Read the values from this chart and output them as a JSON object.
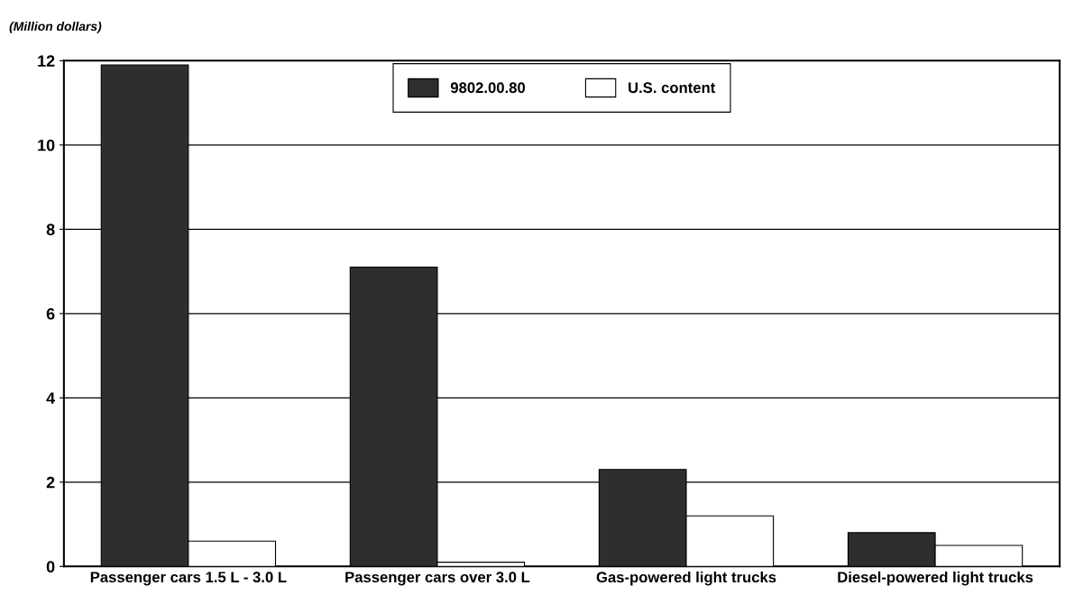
{
  "chart_data": {
    "type": "bar",
    "ylabel": "(Million dollars)",
    "categories": [
      "Passenger cars 1.5 L - 3.0 L",
      "Passenger cars over 3.0 L",
      "Gas-powered light trucks",
      "Diesel-powered light trucks"
    ],
    "series": [
      {
        "name": "9802.00.80",
        "color": "#2e2e2e",
        "values": [
          11.9,
          7.1,
          2.3,
          0.8
        ]
      },
      {
        "name": "U.S. content",
        "color": "#ffffff",
        "values": [
          0.6,
          0.1,
          1.2,
          0.5
        ]
      }
    ],
    "ylim": [
      0,
      12
    ],
    "yticks": [
      0,
      2,
      4,
      6,
      8,
      10,
      12
    ],
    "grid": "y",
    "legend": "top"
  }
}
